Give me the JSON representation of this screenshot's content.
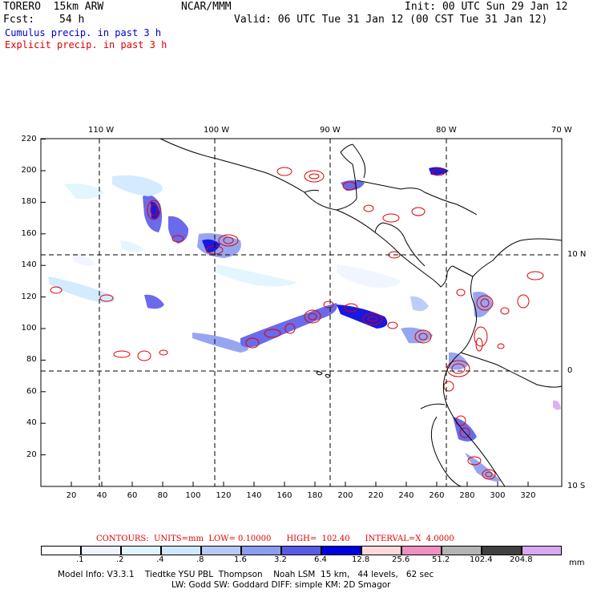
{
  "header": {
    "model": "TORERO  15km ARW",
    "org": "NCAR/MMM",
    "init": "Init: 00 UTC Sun 29 Jan 12",
    "fcst_label": "Fcst:",
    "fcst_value": "54 h",
    "valid": "Valid: 06 UTC Tue 31 Jan 12 (00 CST Tue 31 Jan 12)",
    "cumulus": "Cumulus precip. in past 3 h",
    "explicit": "Explicit precip. in past 3 h"
  },
  "colors": {
    "cumulus": "#0000cc",
    "explicit": "#dd0000"
  },
  "axes": {
    "top_labels": [
      "110 W",
      "100 W",
      "90 W",
      "80 W",
      "70 W"
    ],
    "right_labels": [
      "10 N",
      "0",
      "10 S"
    ],
    "x_ticks": [
      "20",
      "40",
      "60",
      "80",
      "100",
      "120",
      "140",
      "160",
      "180",
      "200",
      "220",
      "240",
      "260",
      "280",
      "300",
      "320"
    ],
    "y_ticks": [
      "220",
      "200",
      "180",
      "160",
      "140",
      "120",
      "100",
      "80",
      "60",
      "40",
      "20"
    ]
  },
  "contours_line": {
    "text": "CONTOURS:  UNITS=mm  LOW= 0.10000      HIGH=  102.40      INTERVAL=X  4.0000"
  },
  "colorbar": {
    "labels": [
      ".1",
      ".2",
      ".4",
      ".8",
      "1.6",
      "3.2",
      "6.4",
      "12.8",
      "25.6",
      "51.2",
      "102.4",
      "204.8"
    ],
    "colors": [
      "#ffffff",
      "#f0f4ff",
      "#e0f4ff",
      "#cfe8ff",
      "#b8c8f8",
      "#8c9cf0",
      "#5a5ae8",
      "#0000e0",
      "#ffd8dc",
      "#f090c0",
      "#b4b4b4",
      "#404040",
      "#d8a8f0"
    ],
    "unit": "mm"
  },
  "footer": {
    "line1": "Model Info: V3.3.1    Tiedtke YSU PBL  Thompson    Noah LSM  15 km,   44 levels,   62 sec",
    "line2": "LW: Godd SW: Goddard DIFF: simple KM: 2D Smagor"
  }
}
